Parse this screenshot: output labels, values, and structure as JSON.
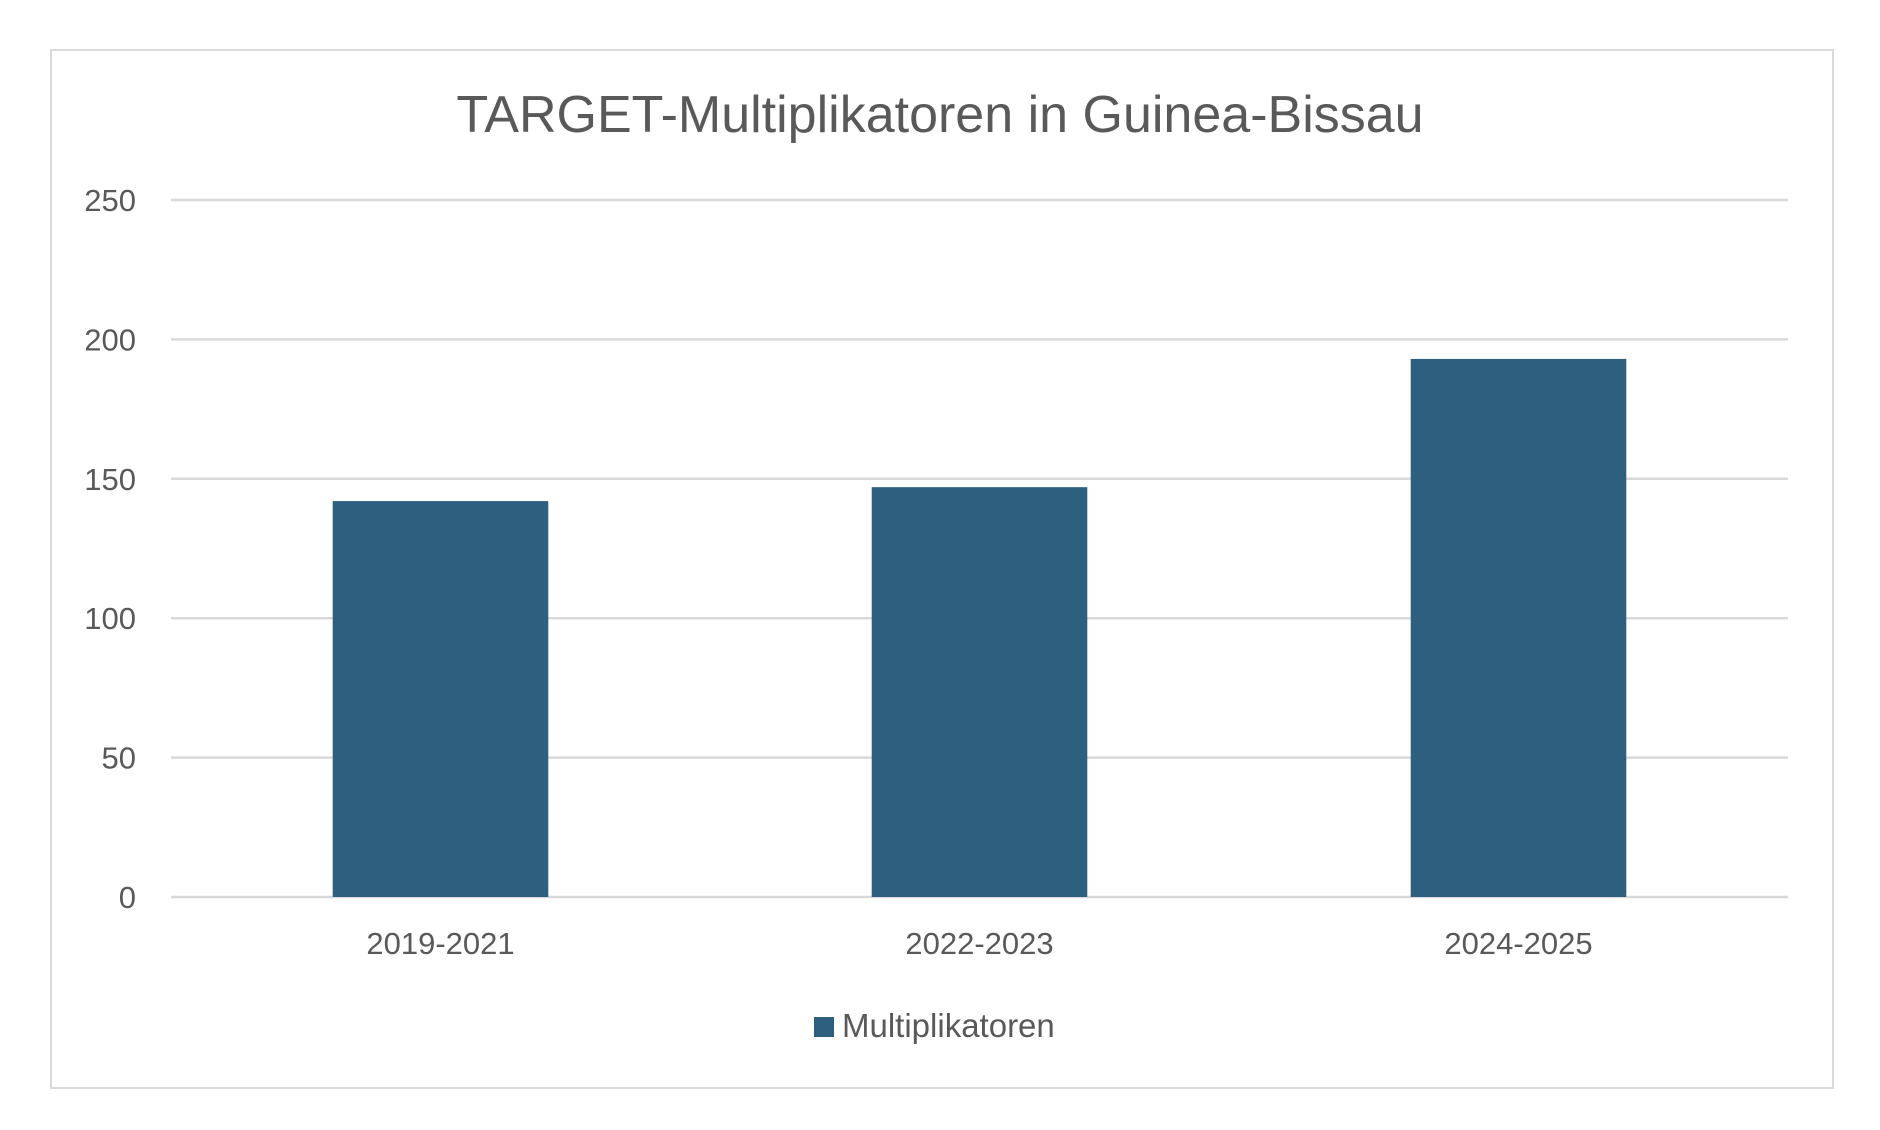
{
  "chart_data": {
    "type": "bar",
    "title": "TARGET-Multiplikatoren in Guinea-Bissau",
    "categories": [
      "2019-2021",
      "2022-2023",
      "2024-2025"
    ],
    "series": [
      {
        "name": "Multiplikatoren",
        "values": [
          142,
          147,
          193
        ],
        "color": "#2e5f7f"
      }
    ],
    "ylim": [
      0,
      250
    ],
    "yticks": [
      "0",
      "50",
      "100",
      "150",
      "200",
      "250"
    ],
    "grid": true,
    "legend": "bottom",
    "gridline_color": "#d9d9d9",
    "text_color": "#595959"
  }
}
